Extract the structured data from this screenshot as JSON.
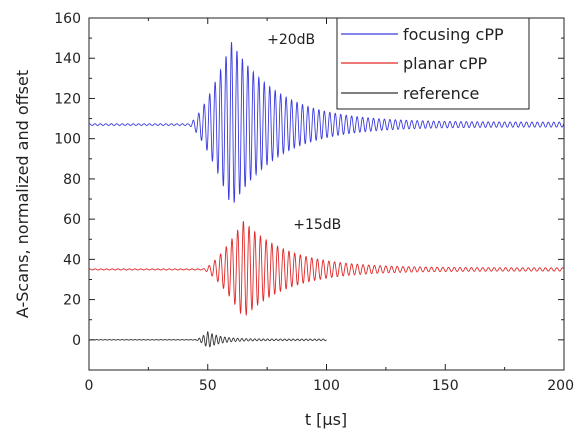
{
  "chart_data": {
    "type": "line",
    "title": "",
    "xlabel": "t [µs]",
    "ylabel": "A-Scans, normalized and offset",
    "xlim": [
      0,
      200
    ],
    "ylim": [
      -15,
      160
    ],
    "xticks": [
      "0",
      "50",
      "100",
      "150",
      "200"
    ],
    "yticks": [
      "0",
      "20",
      "40",
      "60",
      "80",
      "100",
      "120",
      "140",
      "160"
    ],
    "grid": false,
    "legend": "top-right",
    "annotations": [
      {
        "text": "+20dB",
        "x": 75,
        "y": 147
      },
      {
        "text": "+15dB",
        "x": 86,
        "y": 55
      }
    ],
    "series": [
      {
        "name": "focusing cPP",
        "color": "#3a3ae0",
        "t_range": [
          0,
          200
        ],
        "baseline": 107,
        "peak_amplitude": 41,
        "burst_start": 42,
        "peak_time": 60,
        "envelope_min": 66,
        "envelope_max": 149,
        "period_us": 2.3,
        "tail_amplitude": 1.2
      },
      {
        "name": "planar cPP",
        "color": "#e02828",
        "t_range": [
          0,
          200
        ],
        "baseline": 35,
        "peak_amplitude": 24,
        "burst_start": 48,
        "peak_time": 65,
        "envelope_min": 12,
        "envelope_max": 59,
        "period_us": 2.4,
        "tail_amplitude": 0.8
      },
      {
        "name": "reference",
        "color": "#333333",
        "t_range": [
          0,
          100
        ],
        "baseline": 0,
        "peak_amplitude": 4,
        "burst_start": 45,
        "peak_time": 50,
        "envelope_min": -4,
        "envelope_max": 4,
        "period_us": 1.8,
        "tail_amplitude": 0.4
      }
    ]
  }
}
